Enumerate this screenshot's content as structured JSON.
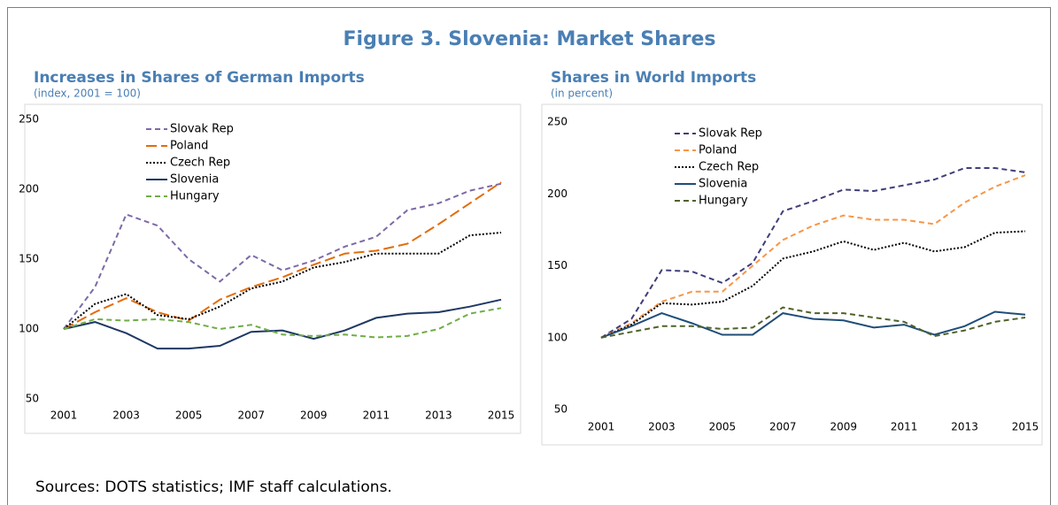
{
  "title": "Figure 3. Slovenia: Market Shares",
  "source": "Sources: DOTS statistics; IMF staff calculations.",
  "chart_data": [
    {
      "type": "line",
      "title": "Increases in Shares of German Imports",
      "subtitle": "(index, 2001 = 100)",
      "categories": [
        "2001",
        null,
        "2003",
        null,
        "2005",
        null,
        "2007",
        null,
        "2009",
        null,
        "2011",
        null,
        "2013",
        null,
        "2015"
      ],
      "ylim": [
        50,
        250
      ],
      "yticks": [
        50,
        100,
        150,
        200,
        250
      ],
      "legend": "upper-left",
      "series": [
        {
          "name": "Slovak Rep",
          "color": "#7d6aa8",
          "dash": "dashed",
          "values": [
            100,
            130,
            182,
            174,
            150,
            134,
            153,
            142,
            149,
            159,
            166,
            185,
            190,
            199,
            204
          ]
        },
        {
          "name": "Poland",
          "color": "#e36c09",
          "dash": "long-dash",
          "values": [
            100,
            112,
            122,
            112,
            106,
            121,
            130,
            137,
            146,
            154,
            156,
            161,
            175,
            190,
            205
          ]
        },
        {
          "name": "Czech Rep",
          "color": "#000000",
          "dash": "dotted",
          "values": [
            100,
            118,
            125,
            110,
            107,
            116,
            129,
            134,
            144,
            148,
            154,
            154,
            154,
            167,
            169
          ]
        },
        {
          "name": "Slovenia",
          "color": "#1f3864",
          "dash": "solid",
          "values": [
            100,
            105,
            97,
            86,
            86,
            88,
            98,
            99,
            93,
            99,
            108,
            111,
            112,
            116,
            121
          ]
        },
        {
          "name": "Hungary",
          "color": "#70ad47",
          "dash": "dashed",
          "values": [
            100,
            107,
            106,
            107,
            105,
            100,
            103,
            96,
            95,
            96,
            94,
            95,
            100,
            111,
            115
          ]
        }
      ]
    },
    {
      "type": "line",
      "title": "Shares in World Imports",
      "subtitle": "(in percent)",
      "categories": [
        "2001",
        null,
        "2003",
        null,
        "2005",
        null,
        "2007",
        null,
        "2009",
        null,
        "2011",
        null,
        "2013",
        null,
        "2015"
      ],
      "ylim": [
        50,
        250
      ],
      "yticks": [
        50,
        100,
        150,
        200,
        250
      ],
      "legend": "upper-left",
      "series": [
        {
          "name": "Slovak Rep",
          "color": "#403e7a",
          "dash": "dashed",
          "values": [
            100,
            113,
            147,
            146,
            138,
            152,
            188,
            195,
            203,
            202,
            206,
            210,
            218,
            218,
            215
          ]
        },
        {
          "name": "Poland",
          "color": "#f79646",
          "dash": "dashed",
          "values": [
            100,
            110,
            125,
            132,
            132,
            150,
            168,
            178,
            185,
            182,
            182,
            179,
            194,
            205,
            213
          ]
        },
        {
          "name": "Czech Rep",
          "color": "#000000",
          "dash": "dotted",
          "values": [
            100,
            109,
            124,
            123,
            125,
            136,
            155,
            160,
            167,
            161,
            166,
            160,
            163,
            173,
            174
          ]
        },
        {
          "name": "Slovenia",
          "color": "#1f4e79",
          "dash": "solid",
          "values": [
            100,
            108,
            117,
            110,
            102,
            102,
            117,
            113,
            112,
            107,
            109,
            102,
            108,
            118,
            116
          ]
        },
        {
          "name": "Hungary",
          "color": "#4f6228",
          "dash": "dashed",
          "values": [
            100,
            104,
            108,
            108,
            106,
            107,
            121,
            117,
            117,
            114,
            111,
            101,
            105,
            111,
            114
          ]
        }
      ]
    }
  ]
}
